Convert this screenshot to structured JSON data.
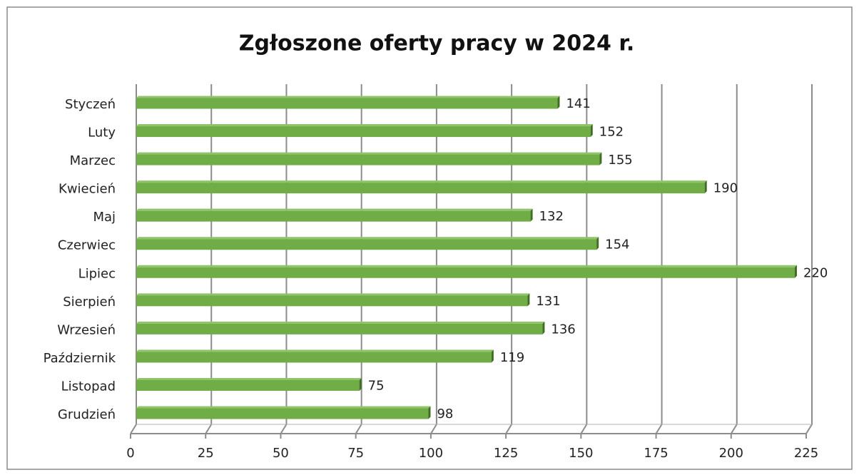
{
  "chart_data": {
    "type": "bar",
    "orientation": "horizontal",
    "title": "Zgłoszone oferty pracy  w 2024 r.",
    "categories": [
      "Styczeń",
      "Luty",
      "Marzec",
      "Kwiecień",
      "Maj",
      "Czerwiec",
      "Lipiec",
      "Sierpień",
      "Wrzesień",
      "Październik",
      "Listopad",
      "Grudzień"
    ],
    "values": [
      141,
      152,
      155,
      190,
      132,
      154,
      220,
      131,
      136,
      119,
      75,
      98
    ],
    "color": "#70ad47",
    "xlim": [
      0,
      225
    ],
    "xticks": [
      0,
      25,
      50,
      75,
      100,
      125,
      150,
      175,
      200,
      225
    ],
    "grid": true
  }
}
